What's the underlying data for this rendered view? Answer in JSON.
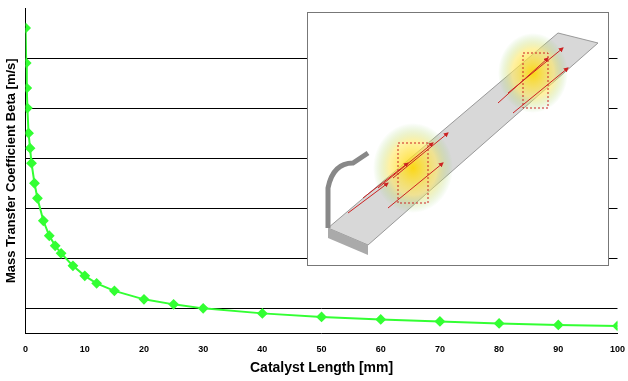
{
  "chart_data": {
    "type": "line",
    "x_label": "Catalyst Length [mm]",
    "y_label": "Mass Transfer Coefficient Beta [m/s]",
    "x": [
      0,
      0.1,
      0.2,
      0.3,
      0.5,
      0.75,
      1,
      1.5,
      2,
      3,
      4,
      5,
      6,
      8,
      10,
      12,
      15,
      20,
      25,
      30,
      40,
      50,
      60,
      70,
      80,
      90,
      100
    ],
    "values": [
      6.1,
      5.4,
      4.9,
      4.5,
      4.0,
      3.7,
      3.4,
      3.0,
      2.7,
      2.25,
      1.95,
      1.75,
      1.6,
      1.35,
      1.15,
      1.0,
      0.85,
      0.68,
      0.58,
      0.5,
      0.4,
      0.33,
      0.28,
      0.24,
      0.2,
      0.17,
      0.15
    ],
    "color": "#33ff33",
    "marker": "diamond",
    "xlim": [
      0,
      100
    ],
    "xticks": [
      0,
      10,
      20,
      30,
      40,
      50,
      60,
      70,
      80,
      90,
      100
    ],
    "ylim": [
      0,
      6.5
    ],
    "yticks": [
      0.5,
      1.5,
      2.5,
      3.5,
      4.5,
      5.5
    ],
    "grid": "y",
    "tick_labels": "x"
  }
}
